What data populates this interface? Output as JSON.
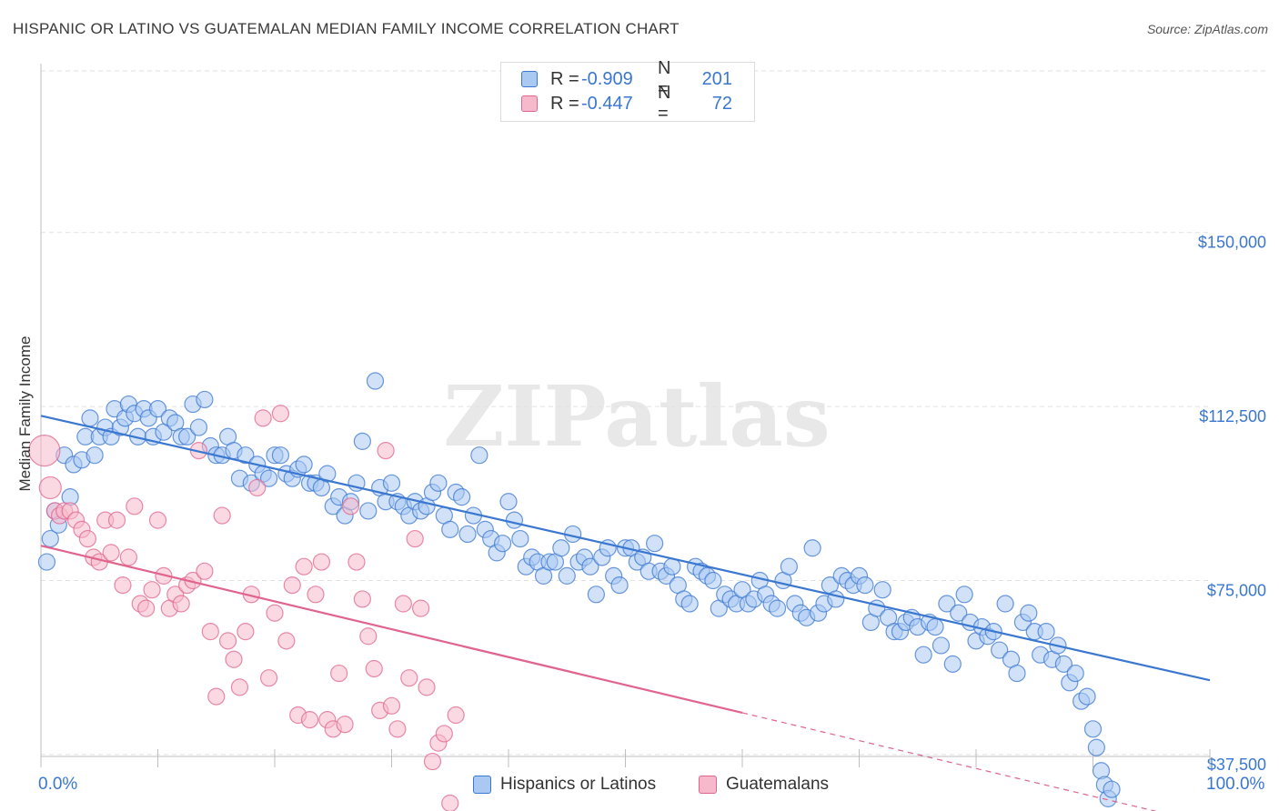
{
  "title": "HISPANIC OR LATINO VS GUATEMALAN MEDIAN FAMILY INCOME CORRELATION CHART",
  "source": "Source: ZipAtlas.com",
  "legend": {
    "rows": [
      {
        "r_label": "R =",
        "r_value": "-0.909",
        "n_label": "N =",
        "n_value": "201",
        "color": "#a9c8f2"
      },
      {
        "r_label": "R =",
        "r_value": "-0.447",
        "n_label": "N =",
        "n_value": "72",
        "color": "#f6b9cb"
      }
    ]
  },
  "x_axis": {
    "min_label": "0.0%",
    "max_label": "100.0%"
  },
  "chart_data": {
    "type": "scatter",
    "title": "HISPANIC OR LATINO VS GUATEMALAN MEDIAN FAMILY INCOME CORRELATION CHART",
    "xlabel": "",
    "ylabel": "Median Family Income",
    "xlim": [
      0,
      100
    ],
    "ylim": [
      0,
      162500
    ],
    "y_ticks": [
      37500,
      75000,
      112500,
      150000
    ],
    "y_tick_labels": [
      "$37,500",
      "$75,000",
      "$112,500",
      "$150,000"
    ],
    "grid": "horizontal dashed",
    "legend_placement": "bottom",
    "series": [
      {
        "name": "Hispanics or Latinos",
        "color": "#3a77d0",
        "fill": "#a9c8f2",
        "R": -0.909,
        "N": 201,
        "trend": {
          "x": [
            0,
            100
          ],
          "y": [
            110500,
            53500
          ]
        },
        "points": [
          [
            0.5,
            79
          ],
          [
            0.8,
            84
          ],
          [
            1.2,
            90
          ],
          [
            1.5,
            87
          ],
          [
            2,
            102
          ],
          [
            2.5,
            93
          ],
          [
            2.8,
            100
          ],
          [
            3.5,
            101
          ],
          [
            3.8,
            106
          ],
          [
            4.2,
            110
          ],
          [
            4.6,
            102
          ],
          [
            5,
            106
          ],
          [
            5.5,
            108
          ],
          [
            6,
            106
          ],
          [
            6.3,
            112
          ],
          [
            6.8,
            108
          ],
          [
            7.2,
            110
          ],
          [
            7.5,
            113
          ],
          [
            8,
            111
          ],
          [
            8.3,
            106
          ],
          [
            8.8,
            112
          ],
          [
            9.2,
            110
          ],
          [
            9.6,
            106
          ],
          [
            10,
            112
          ],
          [
            10.5,
            107
          ],
          [
            11,
            110
          ],
          [
            11.5,
            109
          ],
          [
            12,
            106
          ],
          [
            12.5,
            106
          ],
          [
            13,
            113
          ],
          [
            13.5,
            108
          ],
          [
            14,
            114
          ],
          [
            14.5,
            104
          ],
          [
            15,
            102
          ],
          [
            15.5,
            102
          ],
          [
            16,
            106
          ],
          [
            16.5,
            103
          ],
          [
            17,
            97
          ],
          [
            17.5,
            102
          ],
          [
            18,
            96
          ],
          [
            18.5,
            100
          ],
          [
            19,
            98
          ],
          [
            19.5,
            97
          ],
          [
            20,
            102
          ],
          [
            20.5,
            102
          ],
          [
            21,
            98
          ],
          [
            21.5,
            97
          ],
          [
            22,
            99
          ],
          [
            22.5,
            100
          ],
          [
            23,
            96
          ],
          [
            23.5,
            96
          ],
          [
            24,
            95
          ],
          [
            24.5,
            98
          ],
          [
            25,
            91
          ],
          [
            25.5,
            93
          ],
          [
            26,
            89
          ],
          [
            26.5,
            92
          ],
          [
            27,
            96
          ],
          [
            27.5,
            105
          ],
          [
            28,
            90
          ],
          [
            28.6,
            118
          ],
          [
            29,
            95
          ],
          [
            29.5,
            92
          ],
          [
            30,
            96
          ],
          [
            30.5,
            92
          ],
          [
            31,
            91
          ],
          [
            31.5,
            89
          ],
          [
            32,
            92
          ],
          [
            32.5,
            90
          ],
          [
            33,
            91
          ],
          [
            33.5,
            94
          ],
          [
            34,
            96
          ],
          [
            34.5,
            89
          ],
          [
            35,
            86
          ],
          [
            35.5,
            94
          ],
          [
            36,
            93
          ],
          [
            36.5,
            85
          ],
          [
            37,
            89
          ],
          [
            37.5,
            102
          ],
          [
            38,
            86
          ],
          [
            38.5,
            84
          ],
          [
            39,
            81
          ],
          [
            39.5,
            83
          ],
          [
            40,
            92
          ],
          [
            40.5,
            88
          ],
          [
            41,
            84
          ],
          [
            41.5,
            78
          ],
          [
            42,
            80
          ],
          [
            42.5,
            79
          ],
          [
            43,
            76
          ],
          [
            43.5,
            79
          ],
          [
            44,
            79
          ],
          [
            44.5,
            82
          ],
          [
            45,
            76
          ],
          [
            45.5,
            85
          ],
          [
            46,
            79
          ],
          [
            46.5,
            80
          ],
          [
            47,
            78
          ],
          [
            47.5,
            72
          ],
          [
            48,
            80
          ],
          [
            48.5,
            82
          ],
          [
            49,
            76
          ],
          [
            49.5,
            74
          ],
          [
            50,
            82
          ],
          [
            50.5,
            82
          ],
          [
            51,
            79
          ],
          [
            51.5,
            80
          ],
          [
            52,
            77
          ],
          [
            52.5,
            83
          ],
          [
            53,
            77
          ],
          [
            53.5,
            76
          ],
          [
            54,
            78
          ],
          [
            54.5,
            74
          ],
          [
            55,
            71
          ],
          [
            55.5,
            70
          ],
          [
            56,
            78
          ],
          [
            56.5,
            77
          ],
          [
            57,
            76
          ],
          [
            57.5,
            75
          ],
          [
            58,
            69
          ],
          [
            58.5,
            72
          ],
          [
            59,
            71
          ],
          [
            59.5,
            70
          ],
          [
            60,
            73
          ],
          [
            60.5,
            70
          ],
          [
            61,
            71
          ],
          [
            61.5,
            75
          ],
          [
            62,
            72
          ],
          [
            62.5,
            70
          ],
          [
            63,
            69
          ],
          [
            63.5,
            75
          ],
          [
            64,
            78
          ],
          [
            64.5,
            70
          ],
          [
            65,
            68
          ],
          [
            65.5,
            67
          ],
          [
            66,
            82
          ],
          [
            66.5,
            68
          ],
          [
            67,
            70
          ],
          [
            67.5,
            74
          ],
          [
            68,
            71
          ],
          [
            68.5,
            76
          ],
          [
            69,
            75
          ],
          [
            69.5,
            74
          ],
          [
            70,
            76
          ],
          [
            70.5,
            74
          ],
          [
            71,
            66
          ],
          [
            71.5,
            69
          ],
          [
            72,
            73
          ],
          [
            72.5,
            67
          ],
          [
            73,
            64
          ],
          [
            73.5,
            64
          ],
          [
            74,
            66
          ],
          [
            74.5,
            67
          ],
          [
            75,
            65
          ],
          [
            75.5,
            59
          ],
          [
            76,
            66
          ],
          [
            76.5,
            65
          ],
          [
            77,
            61
          ],
          [
            77.5,
            70
          ],
          [
            78,
            57
          ],
          [
            78.5,
            68
          ],
          [
            79,
            72
          ],
          [
            79.5,
            66
          ],
          [
            80,
            62
          ],
          [
            80.5,
            65
          ],
          [
            81,
            63
          ],
          [
            81.5,
            64
          ],
          [
            82,
            60
          ],
          [
            82.5,
            70
          ],
          [
            83,
            58
          ],
          [
            83.5,
            55
          ],
          [
            84,
            66
          ],
          [
            84.5,
            68
          ],
          [
            85,
            64
          ],
          [
            85.5,
            59
          ],
          [
            86,
            64
          ],
          [
            86.5,
            58
          ],
          [
            87,
            61
          ],
          [
            87.5,
            57
          ],
          [
            88,
            53
          ],
          [
            88.5,
            55
          ],
          [
            89,
            49
          ],
          [
            89.5,
            50
          ],
          [
            90,
            43
          ],
          [
            90.3,
            39
          ],
          [
            90.7,
            34
          ],
          [
            91,
            31
          ],
          [
            91.3,
            28
          ],
          [
            91.6,
            30
          ]
        ]
      },
      {
        "name": "Guatemalans",
        "color": "#e0648e",
        "fill": "#f6b9cb",
        "R": -0.447,
        "N": 72,
        "trend": {
          "x": [
            0,
            60
          ],
          "y": [
            82500,
            46500
          ],
          "dashed_to": {
            "x": 100,
            "y": 22500
          }
        },
        "points": [
          [
            0.3,
            103
          ],
          [
            0.8,
            95
          ],
          [
            1.2,
            90
          ],
          [
            1.6,
            89
          ],
          [
            2,
            90
          ],
          [
            2.5,
            90
          ],
          [
            3,
            88
          ],
          [
            3.5,
            86
          ],
          [
            4,
            84
          ],
          [
            4.5,
            80
          ],
          [
            5,
            79
          ],
          [
            5.5,
            88
          ],
          [
            6,
            81
          ],
          [
            6.5,
            88
          ],
          [
            7,
            74
          ],
          [
            7.5,
            80
          ],
          [
            8,
            91
          ],
          [
            8.5,
            70
          ],
          [
            9,
            69
          ],
          [
            9.5,
            73
          ],
          [
            10,
            88
          ],
          [
            10.5,
            76
          ],
          [
            11,
            69
          ],
          [
            11.5,
            72
          ],
          [
            12,
            70
          ],
          [
            12.5,
            74
          ],
          [
            13,
            75
          ],
          [
            13.5,
            103
          ],
          [
            14,
            77
          ],
          [
            14.5,
            64
          ],
          [
            15,
            50
          ],
          [
            15.5,
            89
          ],
          [
            16,
            62
          ],
          [
            16.5,
            58
          ],
          [
            17,
            52
          ],
          [
            17.5,
            64
          ],
          [
            18,
            72
          ],
          [
            18.5,
            95
          ],
          [
            19,
            110
          ],
          [
            19.5,
            54
          ],
          [
            20,
            68
          ],
          [
            20.5,
            111
          ],
          [
            21,
            62
          ],
          [
            21.5,
            74
          ],
          [
            22,
            46
          ],
          [
            22.5,
            78
          ],
          [
            23,
            45
          ],
          [
            23.5,
            72
          ],
          [
            24,
            79
          ],
          [
            24.5,
            45
          ],
          [
            25,
            43
          ],
          [
            25.5,
            55
          ],
          [
            26,
            44
          ],
          [
            26.5,
            91
          ],
          [
            27,
            79
          ],
          [
            27.5,
            71
          ],
          [
            28,
            63
          ],
          [
            28.5,
            56
          ],
          [
            29,
            47
          ],
          [
            29.5,
            103
          ],
          [
            30,
            48
          ],
          [
            30.5,
            43
          ],
          [
            31,
            70
          ],
          [
            31.5,
            54
          ],
          [
            32,
            84
          ],
          [
            32.5,
            69
          ],
          [
            33,
            52
          ],
          [
            33.5,
            36
          ],
          [
            34,
            40
          ],
          [
            34.5,
            42
          ],
          [
            35,
            27
          ],
          [
            35.5,
            46
          ]
        ]
      }
    ]
  },
  "bottom_legend": [
    "Hispanics or Latinos",
    "Guatemalans"
  ],
  "watermark": "ZIPatlas"
}
